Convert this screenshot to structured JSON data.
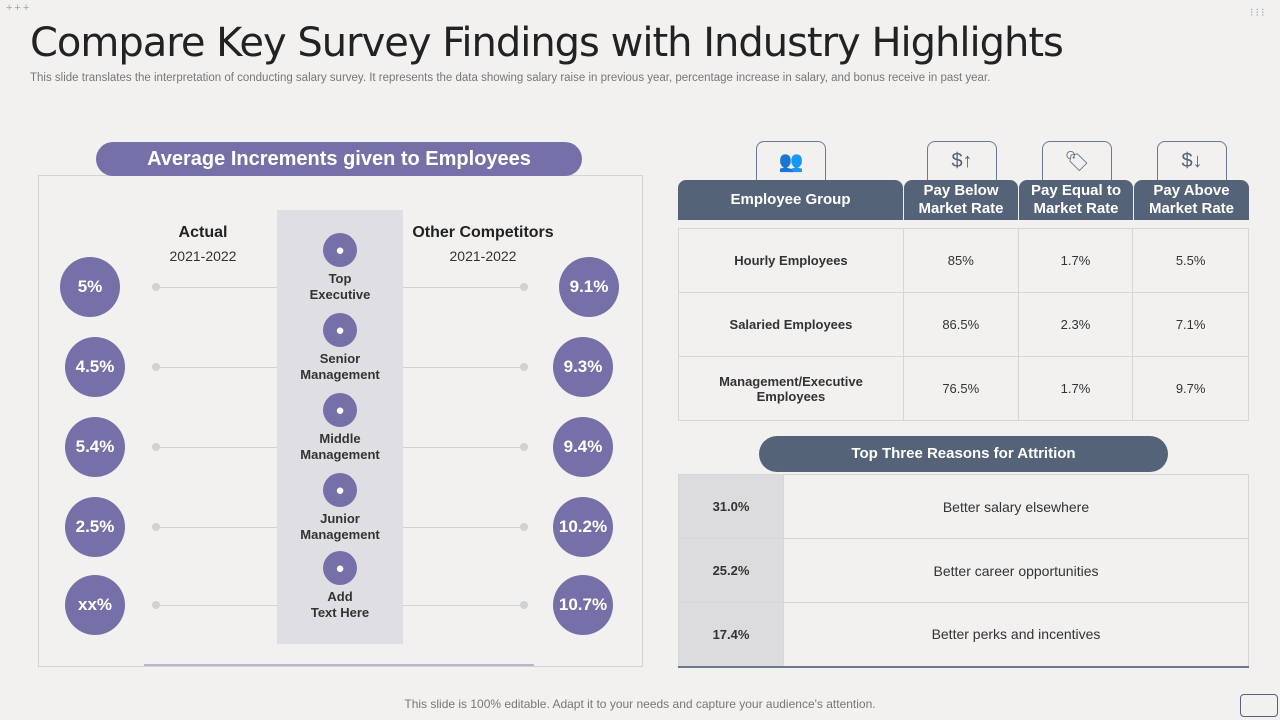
{
  "header": {
    "title": "Compare Key Survey Findings with Industry Highlights",
    "subtitle": "This slide translates the interpretation of conducting salary survey.  It represents the data showing salary raise in previous year, percentage increase in salary, and bonus receive in past year."
  },
  "left": {
    "title": "Average Increments given to Employees",
    "actual_label": "Actual",
    "actual_year": "2021-2022",
    "comp_label": "Other Competitors",
    "comp_year": "2021-2022",
    "rows": [
      {
        "label1": "Top",
        "label2": "Executive",
        "actual": "5%",
        "competitor": "9.1%",
        "icon": "person-gear-icon"
      },
      {
        "label1": "Senior",
        "label2": "Management",
        "actual": "4.5%",
        "competitor": "9.3%",
        "icon": "manager-icon"
      },
      {
        "label1": "Middle",
        "label2": "Management",
        "actual": "5.4%",
        "competitor": "9.4%",
        "icon": "presenter-icon"
      },
      {
        "label1": "Junior",
        "label2": "Management",
        "actual": "2.5%",
        "competitor": "10.2%",
        "icon": "team-icon"
      },
      {
        "label1": "Add",
        "label2": "Text Here",
        "actual": "xx%",
        "competitor": "10.7%",
        "icon": "bars-icon"
      }
    ]
  },
  "table": {
    "headers": [
      "Employee Group",
      "Pay Below Market Rate",
      "Pay Equal to Market Rate",
      "Pay Above Market Rate"
    ],
    "icons": [
      "group-icon",
      "dollar-up-icon",
      "price-tag-icon",
      "dollar-down-icon"
    ],
    "rows": [
      [
        "Hourly Employees",
        "85%",
        "1.7%",
        "5.5%"
      ],
      [
        "Salaried Employees",
        "86.5%",
        "2.3%",
        "7.1%"
      ],
      [
        "Management/Executive Employees",
        "76.5%",
        "1.7%",
        "9.7%"
      ]
    ]
  },
  "attrition": {
    "title": "Top Three Reasons for Attrition",
    "rows": [
      [
        "31.0%",
        "Better salary elsewhere"
      ],
      [
        "25.2%",
        "Better career opportunities"
      ],
      [
        "17.4%",
        "Better perks and incentives"
      ]
    ]
  },
  "footer": "This slide is 100% editable. Adapt it to your needs and capture your audience's attention.",
  "colors": {
    "purple": "#7670a8",
    "slate": "#546378"
  }
}
